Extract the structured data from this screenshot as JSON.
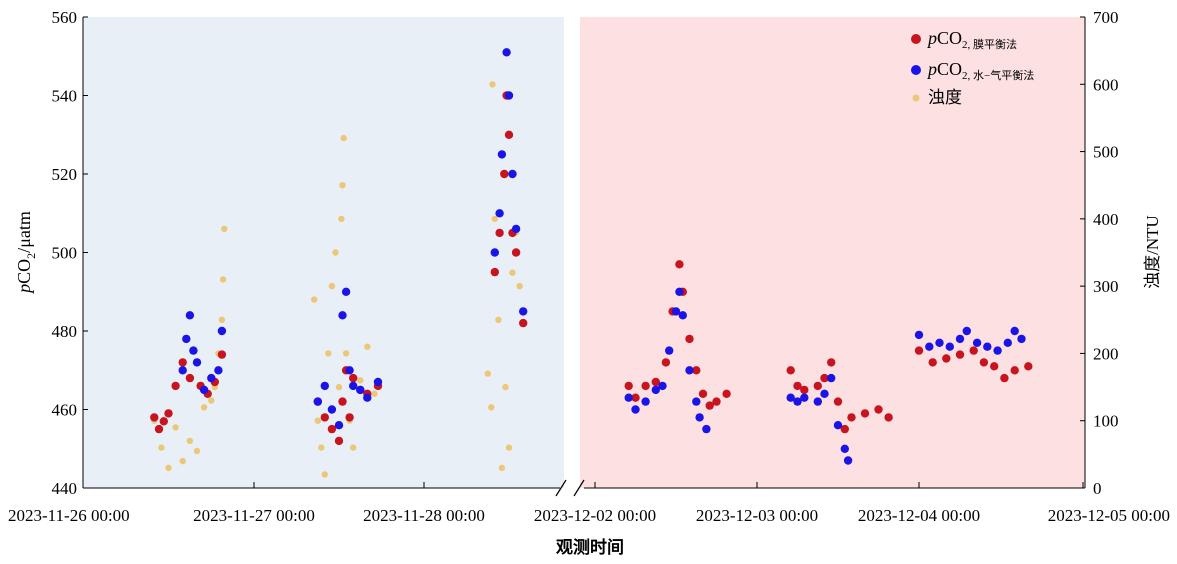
{
  "colors": {
    "left_background": "#e8eff6",
    "right_background": "#fde0e2",
    "series_membrane": "#c8141e",
    "series_water_gas": "#1a14e6",
    "series_turbidity": "#ecc777"
  },
  "chart_data": {
    "type": "scatter",
    "x_axis_break": true,
    "xlabel": "观测时间",
    "ylabel_left": {
      "prefix": "p",
      "main": "CO",
      "sub": "2",
      "suffix": "/μatm"
    },
    "ylabel_right": "浊度/NTU",
    "ylim_left": [
      440,
      560
    ],
    "ylim_right": [
      0,
      700
    ],
    "yticks_left": [
      "440",
      "460",
      "480",
      "500",
      "520",
      "540",
      "560"
    ],
    "yticks_right": [
      "0",
      "100",
      "200",
      "300",
      "400",
      "500",
      "600",
      "700"
    ],
    "xticks": [
      "2023-11-26 00:00",
      "2023-11-27 00:00",
      "2023-11-28 00:00",
      "2023-12-02 00:00",
      "2023-12-03 00:00",
      "2023-12-04 00:00",
      "2023-12-05 00:00"
    ],
    "legend": {
      "placement": "top-right",
      "entries": [
        {
          "prefix": "p",
          "main": "CO",
          "sub": "2, 膜平衡法"
        },
        {
          "prefix": "p",
          "main": "CO",
          "sub": "2, 水−气平衡法"
        },
        {
          "prefix": "",
          "main": "浊度",
          "sub": ""
        }
      ]
    },
    "series": [
      {
        "name": "pCO2, 膜平衡法",
        "axis": "left",
        "points": [
          [
            "2023-11-26 10:00",
            458
          ],
          [
            "2023-11-26 10:40",
            455
          ],
          [
            "2023-11-26 11:20",
            457
          ],
          [
            "2023-11-26 12:00",
            459
          ],
          [
            "2023-11-26 13:00",
            466
          ],
          [
            "2023-11-26 14:00",
            472
          ],
          [
            "2023-11-26 15:00",
            468
          ],
          [
            "2023-11-26 16:30",
            466
          ],
          [
            "2023-11-26 17:30",
            464
          ],
          [
            "2023-11-26 18:30",
            467
          ],
          [
            "2023-11-26 19:30",
            474
          ],
          [
            "2023-11-27 09:00",
            462
          ],
          [
            "2023-11-27 10:00",
            458
          ],
          [
            "2023-11-27 11:00",
            455
          ],
          [
            "2023-11-27 12:00",
            452
          ],
          [
            "2023-11-27 12:30",
            462
          ],
          [
            "2023-11-27 13:00",
            470
          ],
          [
            "2023-11-27 13:30",
            458
          ],
          [
            "2023-11-27 14:00",
            468
          ],
          [
            "2023-11-27 15:00",
            465
          ],
          [
            "2023-11-27 16:00",
            464
          ],
          [
            "2023-11-27 17:30",
            466
          ],
          [
            "2023-11-28 10:00",
            495
          ],
          [
            "2023-11-28 10:40",
            505
          ],
          [
            "2023-11-28 11:20",
            520
          ],
          [
            "2023-11-28 11:40",
            540
          ],
          [
            "2023-11-28 12:00",
            530
          ],
          [
            "2023-11-28 12:30",
            505
          ],
          [
            "2023-11-28 13:00",
            500
          ],
          [
            "2023-11-28 14:00",
            482
          ],
          [
            "2023-12-02 05:00",
            466
          ],
          [
            "2023-12-02 06:00",
            463
          ],
          [
            "2023-12-02 07:30",
            466
          ],
          [
            "2023-12-02 09:00",
            467
          ],
          [
            "2023-12-02 10:30",
            472
          ],
          [
            "2023-12-02 11:30",
            485
          ],
          [
            "2023-12-02 12:30",
            497
          ],
          [
            "2023-12-02 13:00",
            490
          ],
          [
            "2023-12-02 14:00",
            478
          ],
          [
            "2023-12-02 15:00",
            470
          ],
          [
            "2023-12-02 16:00",
            464
          ],
          [
            "2023-12-02 17:00",
            461
          ],
          [
            "2023-12-02 18:00",
            462
          ],
          [
            "2023-12-02 19:30",
            464
          ],
          [
            "2023-12-03 05:00",
            470
          ],
          [
            "2023-12-03 06:00",
            466
          ],
          [
            "2023-12-03 07:00",
            465
          ],
          [
            "2023-12-03 09:00",
            466
          ],
          [
            "2023-12-03 10:00",
            468
          ],
          [
            "2023-12-03 11:00",
            472
          ],
          [
            "2023-12-03 12:00",
            462
          ],
          [
            "2023-12-03 13:00",
            455
          ],
          [
            "2023-12-03 14:00",
            458
          ],
          [
            "2023-12-03 16:00",
            459
          ],
          [
            "2023-12-03 18:00",
            460
          ],
          [
            "2023-12-03 19:30",
            458
          ],
          [
            "2023-12-04 00:00",
            475
          ],
          [
            "2023-12-04 02:00",
            472
          ],
          [
            "2023-12-04 04:00",
            473
          ],
          [
            "2023-12-04 06:00",
            474
          ],
          [
            "2023-12-04 08:00",
            475
          ],
          [
            "2023-12-04 09:30",
            472
          ],
          [
            "2023-12-04 11:00",
            471
          ],
          [
            "2023-12-04 12:30",
            468
          ],
          [
            "2023-12-04 14:00",
            470
          ],
          [
            "2023-12-04 16:00",
            471
          ]
        ]
      },
      {
        "name": "pCO2, 水−气平衡法",
        "axis": "left",
        "points": [
          [
            "2023-11-26 14:00",
            470
          ],
          [
            "2023-11-26 14:30",
            478
          ],
          [
            "2023-11-26 15:00",
            484
          ],
          [
            "2023-11-26 15:30",
            475
          ],
          [
            "2023-11-26 16:00",
            472
          ],
          [
            "2023-11-26 17:00",
            465
          ],
          [
            "2023-11-26 18:00",
            468
          ],
          [
            "2023-11-26 19:00",
            470
          ],
          [
            "2023-11-26 19:30",
            480
          ],
          [
            "2023-11-27 09:00",
            462
          ],
          [
            "2023-11-27 10:00",
            466
          ],
          [
            "2023-11-27 11:00",
            460
          ],
          [
            "2023-11-27 12:00",
            456
          ],
          [
            "2023-11-27 12:30",
            484
          ],
          [
            "2023-11-27 13:00",
            490
          ],
          [
            "2023-11-27 13:30",
            470
          ],
          [
            "2023-11-27 14:00",
            466
          ],
          [
            "2023-11-27 15:00",
            465
          ],
          [
            "2023-11-27 16:00",
            463
          ],
          [
            "2023-11-27 17:30",
            467
          ],
          [
            "2023-11-28 10:00",
            500
          ],
          [
            "2023-11-28 10:40",
            510
          ],
          [
            "2023-11-28 11:00",
            525
          ],
          [
            "2023-11-28 11:40",
            551
          ],
          [
            "2023-11-28 12:00",
            540
          ],
          [
            "2023-11-28 12:30",
            520
          ],
          [
            "2023-11-28 13:00",
            506
          ],
          [
            "2023-11-28 14:00",
            485
          ],
          [
            "2023-12-02 05:00",
            463
          ],
          [
            "2023-12-02 06:00",
            460
          ],
          [
            "2023-12-02 07:30",
            462
          ],
          [
            "2023-12-02 09:00",
            465
          ],
          [
            "2023-12-02 10:00",
            466
          ],
          [
            "2023-12-02 11:00",
            475
          ],
          [
            "2023-12-02 12:00",
            485
          ],
          [
            "2023-12-02 12:30",
            490
          ],
          [
            "2023-12-02 13:00",
            484
          ],
          [
            "2023-12-02 14:00",
            470
          ],
          [
            "2023-12-02 15:00",
            462
          ],
          [
            "2023-12-02 15:30",
            458
          ],
          [
            "2023-12-02 16:30",
            455
          ],
          [
            "2023-12-03 05:00",
            463
          ],
          [
            "2023-12-03 06:00",
            462
          ],
          [
            "2023-12-03 07:00",
            463
          ],
          [
            "2023-12-03 09:00",
            462
          ],
          [
            "2023-12-03 10:00",
            464
          ],
          [
            "2023-12-03 11:00",
            468
          ],
          [
            "2023-12-03 12:00",
            456
          ],
          [
            "2023-12-03 13:00",
            450
          ],
          [
            "2023-12-03 13:30",
            447
          ],
          [
            "2023-12-04 00:00",
            479
          ],
          [
            "2023-12-04 01:30",
            476
          ],
          [
            "2023-12-04 03:00",
            477
          ],
          [
            "2023-12-04 04:30",
            476
          ],
          [
            "2023-12-04 06:00",
            478
          ],
          [
            "2023-12-04 07:00",
            480
          ],
          [
            "2023-12-04 08:30",
            477
          ],
          [
            "2023-12-04 10:00",
            476
          ],
          [
            "2023-12-04 11:30",
            475
          ],
          [
            "2023-12-04 13:00",
            477
          ],
          [
            "2023-12-04 14:00",
            480
          ],
          [
            "2023-12-04 15:00",
            478
          ]
        ]
      },
      {
        "name": "浊度",
        "axis": "right",
        "points": [
          [
            "2023-11-26 10:00",
            100
          ],
          [
            "2023-11-26 11:00",
            60
          ],
          [
            "2023-11-26 12:00",
            30
          ],
          [
            "2023-11-26 13:00",
            90
          ],
          [
            "2023-11-26 14:00",
            40
          ],
          [
            "2023-11-26 15:00",
            70
          ],
          [
            "2023-11-26 16:00",
            55
          ],
          [
            "2023-11-26 17:00",
            120
          ],
          [
            "2023-11-26 18:00",
            130
          ],
          [
            "2023-11-26 18:30",
            150
          ],
          [
            "2023-11-26 19:00",
            200
          ],
          [
            "2023-11-26 19:30",
            250
          ],
          [
            "2023-11-26 19:40",
            310
          ],
          [
            "2023-11-26 19:50",
            385
          ],
          [
            "2023-11-27 08:30",
            280
          ],
          [
            "2023-11-27 09:00",
            100
          ],
          [
            "2023-11-27 09:30",
            60
          ],
          [
            "2023-11-27 10:00",
            20
          ],
          [
            "2023-11-27 10:30",
            200
          ],
          [
            "2023-11-27 11:00",
            300
          ],
          [
            "2023-11-27 11:30",
            350
          ],
          [
            "2023-11-27 12:00",
            150
          ],
          [
            "2023-11-27 12:20",
            400
          ],
          [
            "2023-11-27 12:30",
            450
          ],
          [
            "2023-11-27 12:40",
            520
          ],
          [
            "2023-11-27 13:00",
            200
          ],
          [
            "2023-11-27 13:30",
            100
          ],
          [
            "2023-11-27 14:00",
            60
          ],
          [
            "2023-11-27 15:00",
            160
          ],
          [
            "2023-11-27 16:00",
            210
          ],
          [
            "2023-11-27 17:00",
            140
          ],
          [
            "2023-11-28 09:00",
            170
          ],
          [
            "2023-11-28 09:30",
            120
          ],
          [
            "2023-11-28 09:40",
            600
          ],
          [
            "2023-11-28 10:00",
            400
          ],
          [
            "2023-11-28 10:30",
            250
          ],
          [
            "2023-11-28 11:00",
            30
          ],
          [
            "2023-11-28 11:30",
            150
          ],
          [
            "2023-11-28 12:00",
            60
          ],
          [
            "2023-11-28 12:30",
            320
          ],
          [
            "2023-11-28 13:00",
            380
          ],
          [
            "2023-11-28 13:30",
            300
          ]
        ]
      }
    ]
  }
}
